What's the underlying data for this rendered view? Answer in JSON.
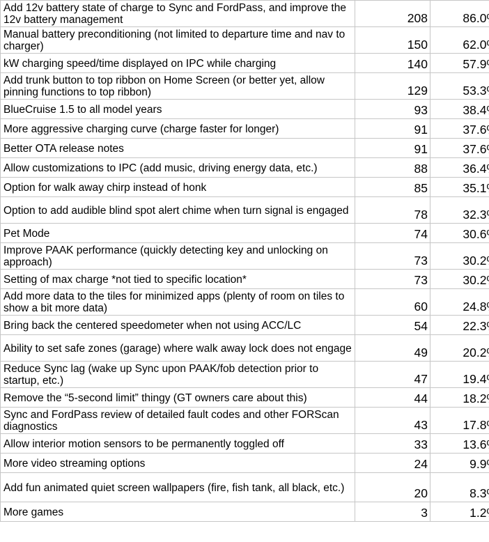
{
  "rows": [
    {
      "feature": "Add 12v battery state of charge to Sync and FordPass, and improve the 12v battery management",
      "votes": "208",
      "percent": "86.0%",
      "lines": 2
    },
    {
      "feature": "Manual battery preconditioning (not limited to departure time and nav to charger)",
      "votes": "150",
      "percent": "62.0%",
      "lines": 2
    },
    {
      "feature": "kW charging speed/time displayed on IPC while charging",
      "votes": "140",
      "percent": "57.9%",
      "lines": 1
    },
    {
      "feature": "Add trunk button to top ribbon on Home Screen (or better yet, allow pinning functions to top ribbon)",
      "votes": "129",
      "percent": "53.3%",
      "lines": 2
    },
    {
      "feature": "BlueCruise 1.5 to all model years",
      "votes": "93",
      "percent": "38.4%",
      "lines": 1
    },
    {
      "feature": "More aggressive charging curve (charge faster for longer)",
      "votes": "91",
      "percent": "37.6%",
      "lines": 1
    },
    {
      "feature": "Better OTA release notes",
      "votes": "91",
      "percent": "37.6%",
      "lines": 1
    },
    {
      "feature": "Allow customizations to IPC (add music, driving energy data, etc.)",
      "votes": "88",
      "percent": "36.4%",
      "lines": 1
    },
    {
      "feature": "Option for walk away chirp instead of honk",
      "votes": "85",
      "percent": "35.1%",
      "lines": 1
    },
    {
      "feature": "Option to add audible blind spot alert chime when turn signal is engaged",
      "votes": "78",
      "percent": "32.3%",
      "lines": 2
    },
    {
      "feature": "Pet Mode",
      "votes": "74",
      "percent": "30.6%",
      "lines": 1
    },
    {
      "feature": "Improve PAAK performance (quickly detecting key and unlocking on approach)",
      "votes": "73",
      "percent": "30.2%",
      "lines": 2
    },
    {
      "feature": "Setting of max charge *not tied to specific location*",
      "votes": "73",
      "percent": "30.2%",
      "lines": 1
    },
    {
      "feature": "Add more data to the tiles for minimized apps (plenty of room on tiles to show a bit more data)",
      "votes": "60",
      "percent": "24.8%",
      "lines": 2
    },
    {
      "feature": "Bring back the centered speedometer when not using ACC/LC",
      "votes": "54",
      "percent": "22.3%",
      "lines": 1
    },
    {
      "feature": "Ability to set safe zones (garage) where walk away lock does not engage",
      "votes": "49",
      "percent": "20.2%",
      "lines": 2
    },
    {
      "feature": "Reduce Sync lag (wake up Sync upon PAAK/fob detection prior to startup, etc.)",
      "votes": "47",
      "percent": "19.4%",
      "lines": 2
    },
    {
      "feature": "Remove the “5-second limit” thingy (GT owners care about this)",
      "votes": "44",
      "percent": "18.2%",
      "lines": 1
    },
    {
      "feature": "Sync and FordPass review of detailed fault codes and other FORScan diagnostics",
      "votes": "43",
      "percent": "17.8%",
      "lines": 2
    },
    {
      "feature": "Allow interior motion sensors to be permanently toggled off",
      "votes": "33",
      "percent": "13.6%",
      "lines": 1
    },
    {
      "feature": "More video streaming options",
      "votes": "24",
      "percent": "9.9%",
      "lines": 1
    },
    {
      "feature": "Add fun animated quiet screen wallpapers (fire, fish tank, all black, etc.)",
      "votes": "20",
      "percent": "8.3%",
      "lines": 3
    },
    {
      "feature": "More games",
      "votes": "3",
      "percent": "1.2%",
      "lines": 1
    }
  ]
}
